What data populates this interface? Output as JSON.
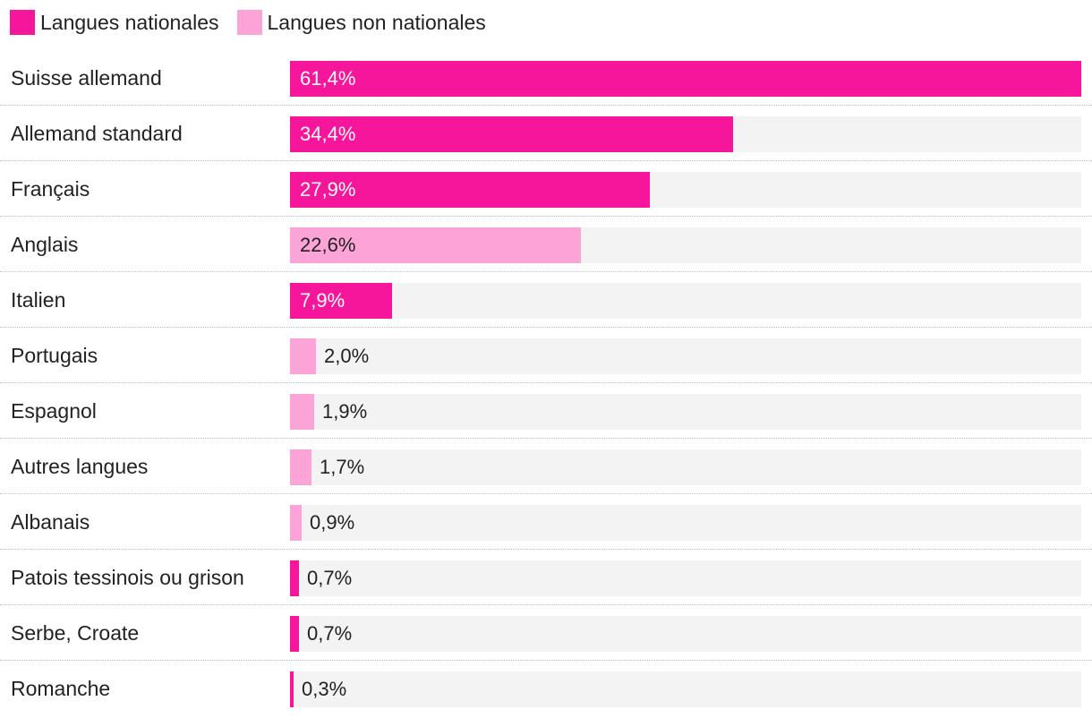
{
  "chart_data": {
    "type": "bar",
    "orientation": "horizontal",
    "legend": {
      "placement": "top-left",
      "entries": [
        {
          "key": "national",
          "label": "Langues nationales",
          "color": "#f5169b"
        },
        {
          "key": "non_national",
          "label": "Langues non nationales",
          "color": "#fca4d8"
        }
      ]
    },
    "xlim": [
      0,
      61.4
    ],
    "categories": [
      "Suisse allemand",
      "Allemand standard",
      "Français",
      "Anglais",
      "Italien",
      "Portugais",
      "Espagnol",
      "Autres langues",
      "Albanais",
      "Patois tessinois ou grison",
      "Serbe, Croate",
      "Romanche"
    ],
    "values": [
      61.4,
      34.4,
      27.9,
      22.6,
      7.9,
      2.0,
      1.9,
      1.7,
      0.9,
      0.7,
      0.7,
      0.3
    ],
    "value_labels": [
      "61,4%",
      "34,4%",
      "27,9%",
      "22,6%",
      "7,9%",
      "2,0%",
      "1,9%",
      "1,7%",
      "0,9%",
      "0,7%",
      "0,7%",
      "0,3%"
    ],
    "groups": [
      "national",
      "national",
      "national",
      "non_national",
      "national",
      "non_national",
      "non_national",
      "non_national",
      "non_national",
      "national",
      "national",
      "national"
    ]
  }
}
